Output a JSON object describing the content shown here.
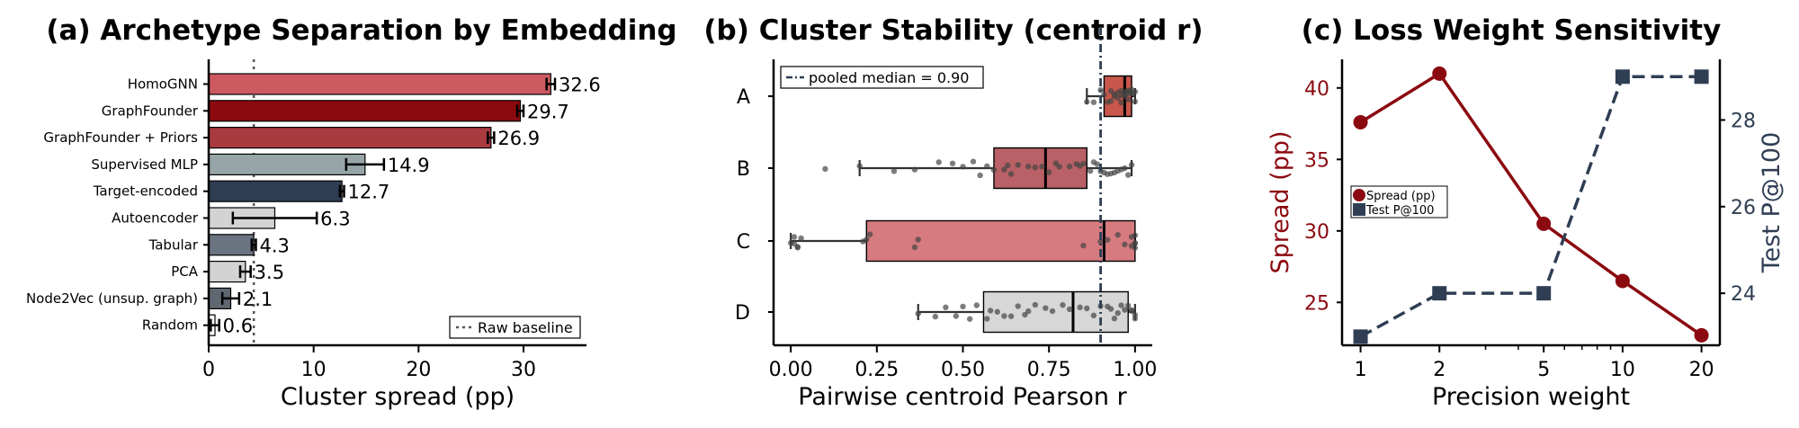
{
  "chart_data": [
    {
      "type": "bar",
      "orientation": "horizontal",
      "title": "(a) Archetype Separation by Embedding",
      "xlabel": "Cluster spread (pp)",
      "ylabel": "",
      "xlim": [
        0,
        36
      ],
      "xticks": [
        0,
        10,
        20,
        30
      ],
      "categories": [
        "HomoGNN",
        "GraphFounder",
        "GraphFounder + Priors",
        "Supervised MLP",
        "Target-encoded",
        "Autoencoder",
        "Tabular",
        "PCA",
        "Node2Vec (unsup. graph)",
        "Random"
      ],
      "values": [
        32.6,
        29.7,
        26.9,
        14.9,
        12.7,
        6.3,
        4.3,
        3.5,
        2.1,
        0.6
      ],
      "value_labels": [
        "32.6",
        "29.7",
        "26.9",
        "14.9",
        "12.7",
        "6.3",
        "4.3",
        "3.5",
        "2.1",
        "0.6"
      ],
      "errors": [
        0.4,
        0.3,
        0.3,
        1.8,
        0.2,
        4.0,
        0.2,
        0.5,
        0.8,
        0.4
      ],
      "colors": [
        "#cc5a60",
        "#8b0a10",
        "#a83a40",
        "#97a5a8",
        "#2f3e53",
        "#d3d3d3",
        "#6a7481",
        "#d3d3d3",
        "#5f6771",
        "#ffffff"
      ],
      "reference_line": {
        "value": 4.3,
        "label": "Raw baseline"
      },
      "legend_placement": "lower-right"
    },
    {
      "type": "box",
      "title": "(b) Cluster Stability (centroid r)",
      "xlabel": "Pairwise centroid Pearson r",
      "ylabel": "",
      "xlim": [
        -0.05,
        1.05
      ],
      "xticks": [
        0.0,
        0.25,
        0.5,
        0.75,
        1.0
      ],
      "xtick_labels": [
        "0.00",
        "0.25",
        "0.50",
        "0.75",
        "1.00"
      ],
      "categories": [
        "A",
        "B",
        "C",
        "D"
      ],
      "boxes": [
        {
          "whisker_low": 0.86,
          "q1": 0.91,
          "median": 0.97,
          "q3": 0.99,
          "whisker_high": 1.0,
          "color": "#c0392b",
          "alpha": 0.85,
          "points": [
            0.86,
            0.88,
            0.9,
            0.91,
            0.92,
            0.93,
            0.94,
            0.94,
            0.95,
            0.95,
            0.96,
            0.96,
            0.97,
            0.97,
            0.97,
            0.98,
            0.98,
            0.98,
            0.99,
            0.99,
            0.99,
            1.0,
            1.0,
            0.93,
            0.96,
            0.98
          ]
        },
        {
          "whisker_low": 0.2,
          "q1": 0.59,
          "median": 0.74,
          "q3": 0.86,
          "whisker_high": 0.99,
          "color": "#a83a40",
          "alpha": 0.8,
          "points": [
            0.1,
            0.2,
            0.3,
            0.36,
            0.43,
            0.47,
            0.5,
            0.53,
            0.55,
            0.57,
            0.59,
            0.62,
            0.64,
            0.66,
            0.69,
            0.71,
            0.73,
            0.75,
            0.78,
            0.81,
            0.83,
            0.85,
            0.87,
            0.88,
            0.89,
            0.9,
            0.91,
            0.92,
            0.93,
            0.94,
            0.95,
            0.96,
            0.97,
            0.98,
            0.99,
            0.63,
            0.77,
            0.84
          ]
        },
        {
          "whisker_low": 0.0,
          "q1": 0.22,
          "median": 0.91,
          "q3": 1.0,
          "whisker_high": 1.0,
          "color": "#cc5a60",
          "alpha": 0.8,
          "points": [
            0.0,
            0.01,
            0.01,
            0.02,
            0.02,
            0.03,
            0.21,
            0.22,
            0.23,
            0.36,
            0.37,
            0.85,
            0.9,
            0.92,
            0.95,
            0.97,
            0.99,
            0.99,
            1.0,
            1.0,
            1.0,
            1.0
          ]
        },
        {
          "whisker_low": 0.37,
          "q1": 0.56,
          "median": 0.82,
          "q3": 0.98,
          "whisker_high": 1.0,
          "color": "#d3d3d3",
          "alpha": 0.9,
          "points": [
            0.37,
            0.42,
            0.45,
            0.48,
            0.5,
            0.52,
            0.54,
            0.57,
            0.6,
            0.62,
            0.64,
            0.66,
            0.69,
            0.71,
            0.74,
            0.76,
            0.79,
            0.81,
            0.84,
            0.86,
            0.88,
            0.9,
            0.92,
            0.94,
            0.95,
            0.96,
            0.97,
            0.98,
            0.99,
            0.99,
            1.0,
            1.0,
            0.58,
            0.68,
            0.93
          ]
        }
      ],
      "reference_line": {
        "value": 0.9,
        "label": "pooled median = 0.90"
      },
      "legend_placement": "upper-left"
    },
    {
      "type": "line",
      "title": "(c) Loss Weight Sensitivity",
      "xlabel": "Precision weight",
      "ylabel": "Spread (pp)",
      "ylabel_right": "Test P@100",
      "x_scale": "log",
      "x": [
        1,
        2,
        5,
        10,
        20
      ],
      "xticks": [
        1,
        2,
        5,
        10,
        20
      ],
      "ylim": [
        22,
        42
      ],
      "yticks": [
        25,
        30,
        35,
        40
      ],
      "ylim_right": [
        22.8,
        29.4
      ],
      "yticks_right": [
        24,
        26,
        28
      ],
      "series": [
        {
          "name": "Spread (pp)",
          "axis": "left",
          "values": [
            37.6,
            41.0,
            30.5,
            26.5,
            22.7
          ],
          "color": "#8b0a10",
          "style": "solid",
          "marker": "circle"
        },
        {
          "name": "Test P@100",
          "axis": "right",
          "values": [
            23.0,
            24.0,
            24.0,
            29.0,
            29.0
          ],
          "color": "#2f3e53",
          "style": "dashed",
          "marker": "square"
        }
      ],
      "legend_placement": "center-left"
    }
  ]
}
